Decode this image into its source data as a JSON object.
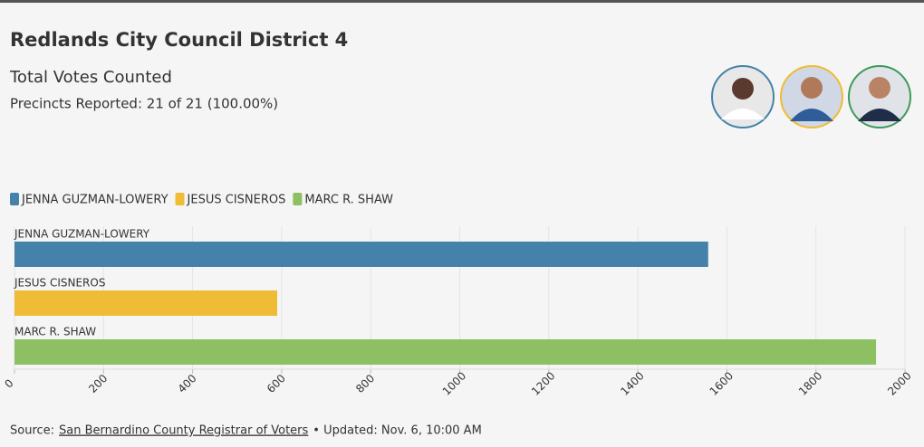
{
  "chart_data": {
    "type": "hbar",
    "title": "Redlands City Council District 4",
    "subtitle": "Total Votes Counted",
    "note": "Precincts Reported: 21 of 21 (100.00%)",
    "categories": [
      "JENNA GUZMAN-LOWERY",
      "JESUS CISNEROS",
      "MARC R. SHAW"
    ],
    "values": [
      1558,
      590,
      1935
    ],
    "colors": [
      "#4582a9",
      "#f0bb35",
      "#8cc063"
    ],
    "xlim": [
      0,
      2000
    ],
    "xticks": [
      0,
      200,
      400,
      600,
      800,
      1000,
      1200,
      1400,
      1600,
      1800,
      2000
    ],
    "grid": true,
    "legend": "top-left"
  },
  "footer": {
    "source_label": "Source:",
    "source_link": "San Bernardino County Registrar of Voters",
    "updated": "• Updated: Nov. 6, 10:00 AM"
  }
}
